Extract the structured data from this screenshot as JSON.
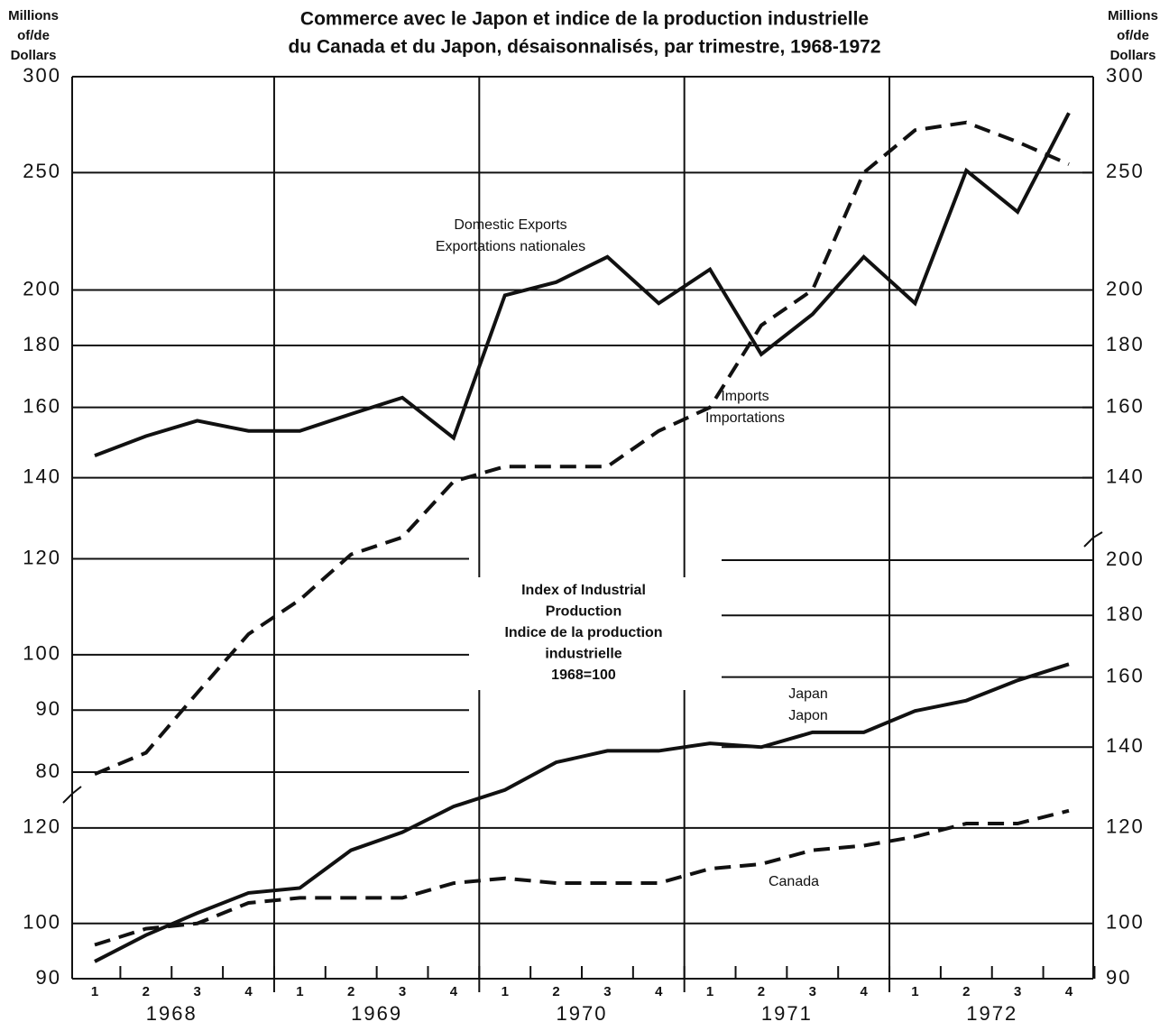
{
  "chart_data": {
    "type": "line",
    "title": [
      "Commerce avec le Japon et indice de la production industrielle",
      "du Canada et du Japon, désaisonnalisés, par trimestre, 1968-1972"
    ],
    "y_label": [
      "Millions",
      "of/de",
      "Dollars"
    ],
    "y2_label": [
      "Millions",
      "of/de",
      "Dollars"
    ],
    "categories": [
      "1",
      "2",
      "3",
      "4",
      "1",
      "2",
      "3",
      "4",
      "1",
      "2",
      "3",
      "4",
      "1",
      "2",
      "3",
      "4",
      "1",
      "2",
      "3",
      "4"
    ],
    "x_groups": [
      "1968",
      "1969",
      "1970",
      "1971",
      "1972"
    ],
    "log_scale": true,
    "ylim": [
      80,
      300
    ],
    "y2lim": [
      90,
      200
    ],
    "left_yticks": [
      300,
      250,
      200,
      180,
      160,
      140,
      120,
      100,
      90,
      80
    ],
    "left_y2ticks": [
      120,
      100,
      90
    ],
    "right_yticks": [
      300,
      250,
      200,
      180,
      160,
      140
    ],
    "right_y2ticks": [
      200,
      180,
      160,
      140,
      120,
      100,
      90
    ],
    "series": [
      {
        "name": "Domestic Exports",
        "name_fr": "Exportations nationales",
        "color": "#111111",
        "dash": false,
        "axis": "y",
        "values": [
          146,
          151.5,
          156,
          153,
          153,
          158,
          163,
          151,
          198,
          203,
          213,
          195,
          208,
          177,
          191,
          213,
          195,
          251,
          232,
          280
        ]
      },
      {
        "name": "Imports",
        "name_fr": "Importations",
        "color": "#111111",
        "dash": true,
        "axis": "y",
        "values": [
          79.7,
          83,
          93,
          104,
          111,
          121,
          125,
          139,
          143,
          143,
          143,
          153,
          160,
          187,
          200,
          250,
          271,
          275,
          265,
          254
        ]
      },
      {
        "name": "Japan",
        "name_fr": "Japon",
        "color": "#111111",
        "dash": false,
        "axis": "y2",
        "values": [
          93,
          97.8,
          102,
          106,
          107,
          115,
          119,
          125,
          129,
          136,
          139,
          139,
          141,
          140,
          144,
          144,
          150,
          153,
          159,
          164
        ]
      },
      {
        "name": "Canada",
        "color": "#111111",
        "dash": true,
        "axis": "y2",
        "values": [
          96,
          99,
          100,
          104,
          105,
          105,
          105,
          108,
          109,
          108,
          108,
          108,
          111,
          112,
          115,
          116,
          118,
          121,
          121,
          124
        ]
      }
    ],
    "index_note": [
      "Index of Industrial",
      "Production",
      "Indice de la production",
      "industrielle",
      "1968=100"
    ]
  }
}
